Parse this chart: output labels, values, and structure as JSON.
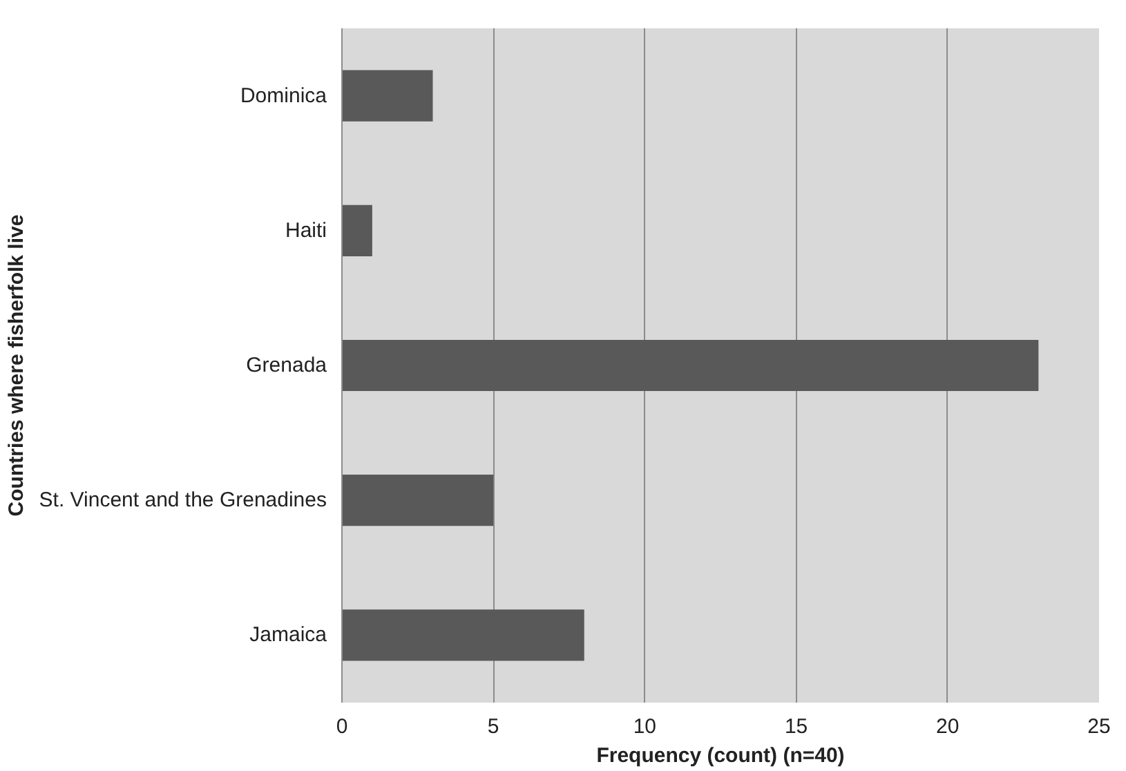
{
  "chart_data": {
    "type": "bar",
    "orientation": "horizontal",
    "xlabel": "Frequency (count) (n=40)",
    "ylabel": "Countries where fisherfolk live",
    "categories": [
      "Dominica",
      "Haiti",
      "Grenada",
      "St. Vincent and the Grenadines",
      "Jamaica"
    ],
    "values": [
      3,
      1,
      23,
      5,
      8
    ],
    "color": "#595959",
    "xlim": [
      0,
      25
    ],
    "xticks": [
      0,
      5,
      10,
      15,
      20,
      25
    ],
    "grid": "x"
  }
}
